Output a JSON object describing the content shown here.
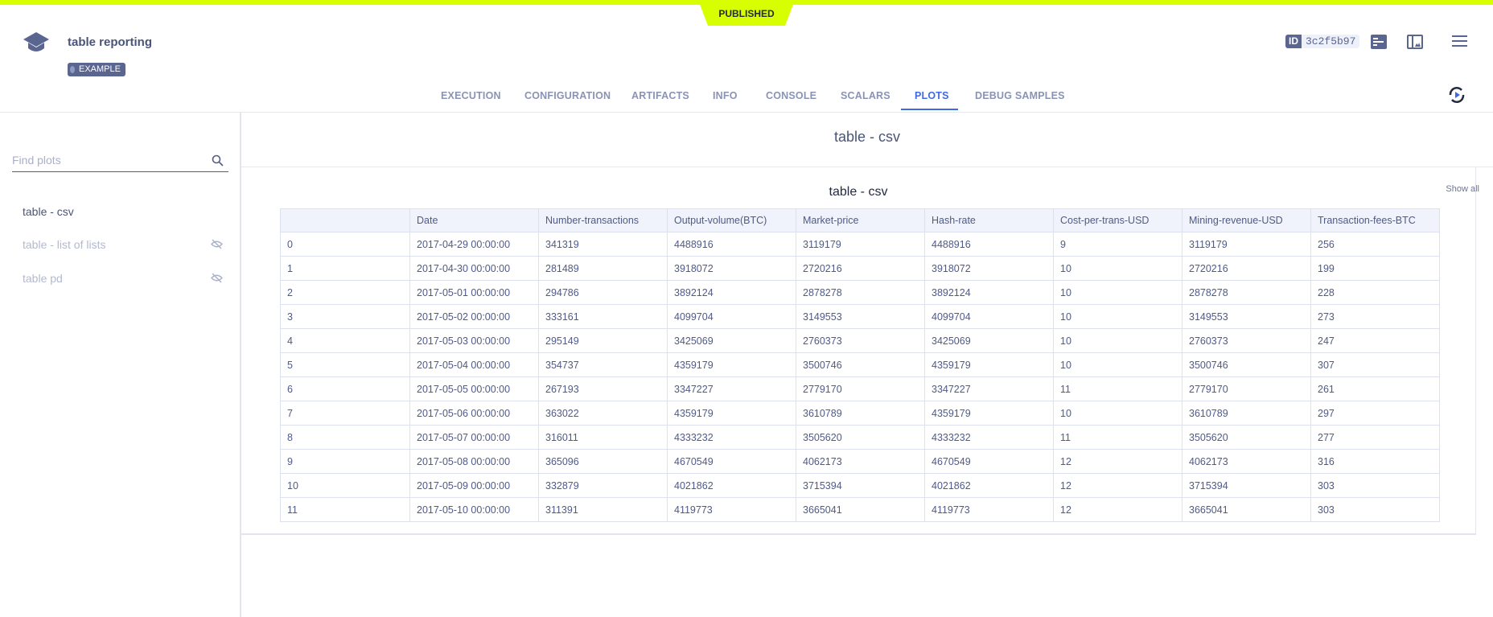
{
  "status_banner": "PUBLISHED",
  "header": {
    "title": "table reporting",
    "badge": "EXAMPLE",
    "id_label": "ID",
    "id_value": "3c2f5b97"
  },
  "icons": {
    "logo": "graduation-cap-icon",
    "details": "details-panel-icon",
    "layout": "layout-icon",
    "menu": "hamburger-menu-icon",
    "refresh": "auto-refresh-icon",
    "search": "search-icon",
    "hidden": "eye-slash-icon"
  },
  "colors": {
    "accent": "#3f69e6",
    "banner": "#d7ff00",
    "text": "#535d84"
  },
  "tabs": [
    {
      "label": "EXECUTION"
    },
    {
      "label": "CONFIGURATION"
    },
    {
      "label": "ARTIFACTS"
    },
    {
      "label": "INFO"
    },
    {
      "label": "CONSOLE"
    },
    {
      "label": "SCALARS"
    },
    {
      "label": "PLOTS",
      "active": true
    },
    {
      "label": "DEBUG SAMPLES"
    }
  ],
  "sidebar": {
    "search_placeholder": "Find plots",
    "show_all": "Show all",
    "items": [
      {
        "label": "table - csv",
        "hidden": false
      },
      {
        "label": "table - list of lists",
        "hidden": true
      },
      {
        "label": "table pd",
        "hidden": true
      }
    ]
  },
  "main": {
    "title": "table - csv",
    "plot_title": "table - csv"
  },
  "chart_data": {
    "type": "table",
    "columns": [
      "",
      "Date",
      "Number-transactions",
      "Output-volume(BTC)",
      "Market-price",
      "Hash-rate",
      "Cost-per-trans-USD",
      "Mining-revenue-USD",
      "Transaction-fees-BTC"
    ],
    "rows": [
      [
        "0",
        "2017-04-29 00:00:00",
        "341319",
        "4488916",
        "3119179",
        "4488916",
        "9",
        "3119179",
        "256"
      ],
      [
        "1",
        "2017-04-30 00:00:00",
        "281489",
        "3918072",
        "2720216",
        "3918072",
        "10",
        "2720216",
        "199"
      ],
      [
        "2",
        "2017-05-01 00:00:00",
        "294786",
        "3892124",
        "2878278",
        "3892124",
        "10",
        "2878278",
        "228"
      ],
      [
        "3",
        "2017-05-02 00:00:00",
        "333161",
        "4099704",
        "3149553",
        "4099704",
        "10",
        "3149553",
        "273"
      ],
      [
        "4",
        "2017-05-03 00:00:00",
        "295149",
        "3425069",
        "2760373",
        "3425069",
        "10",
        "2760373",
        "247"
      ],
      [
        "5",
        "2017-05-04 00:00:00",
        "354737",
        "4359179",
        "3500746",
        "4359179",
        "10",
        "3500746",
        "307"
      ],
      [
        "6",
        "2017-05-05 00:00:00",
        "267193",
        "3347227",
        "2779170",
        "3347227",
        "11",
        "2779170",
        "261"
      ],
      [
        "7",
        "2017-05-06 00:00:00",
        "363022",
        "4359179",
        "3610789",
        "4359179",
        "10",
        "3610789",
        "297"
      ],
      [
        "8",
        "2017-05-07 00:00:00",
        "316011",
        "4333232",
        "3505620",
        "4333232",
        "11",
        "3505620",
        "277"
      ],
      [
        "9",
        "2017-05-08 00:00:00",
        "365096",
        "4670549",
        "4062173",
        "4670549",
        "12",
        "4062173",
        "316"
      ],
      [
        "10",
        "2017-05-09 00:00:00",
        "332879",
        "4021862",
        "3715394",
        "4021862",
        "12",
        "3715394",
        "303"
      ],
      [
        "11",
        "2017-05-10 00:00:00",
        "311391",
        "4119773",
        "3665041",
        "4119773",
        "12",
        "3665041",
        "303"
      ]
    ]
  }
}
